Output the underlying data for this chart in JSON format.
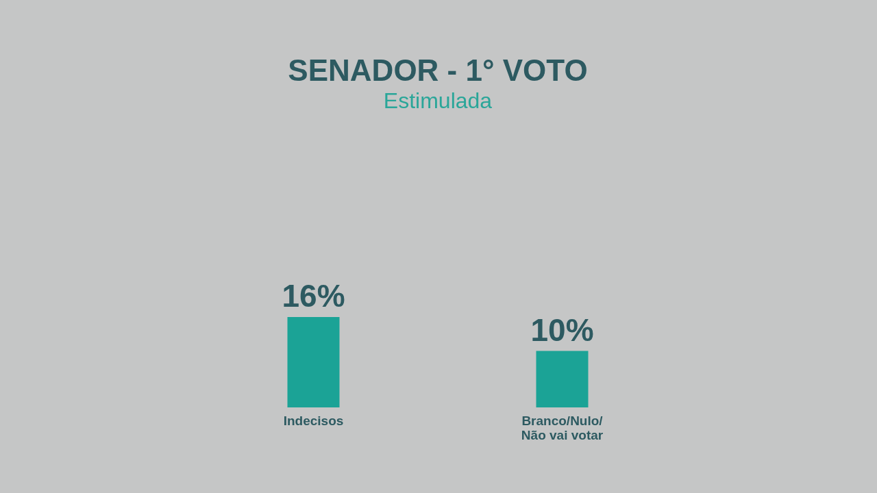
{
  "chart_data": {
    "type": "bar",
    "title": "SENADOR - 1° VOTO",
    "subtitle": "Estimulada",
    "categories": [
      "Indecisos",
      "Branco/Nulo/\nNão vai votar"
    ],
    "values": [
      16,
      10
    ],
    "value_labels": [
      "16%",
      "10%"
    ],
    "color": "#1ba396",
    "tick_labels": "x"
  }
}
